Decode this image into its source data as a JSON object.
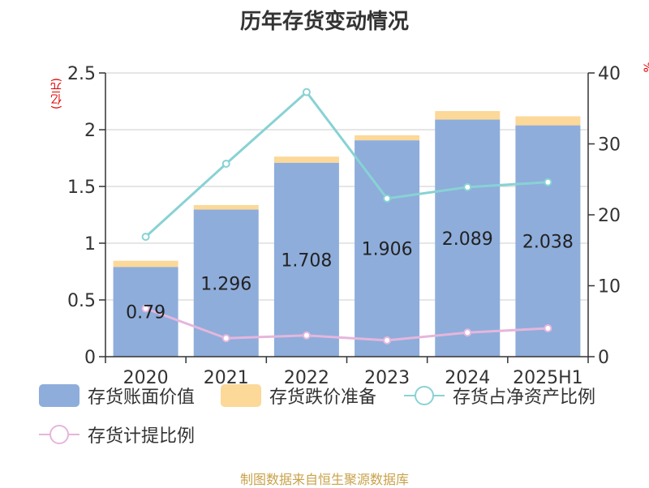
{
  "chart_data": {
    "type": "bar+line",
    "title": "历年存货变动情况",
    "categories": [
      "2020",
      "2021",
      "2022",
      "2023",
      "2024",
      "2025H1"
    ],
    "left_axis": {
      "unit": "(亿元)",
      "min": 0,
      "max": 2.5,
      "ticks": [
        "0",
        "0.5",
        "1",
        "1.5",
        "2",
        "2.5"
      ]
    },
    "right_axis": {
      "unit": "%",
      "min": 0,
      "max": 40,
      "ticks": [
        "0",
        "10",
        "20",
        "30",
        "40"
      ]
    },
    "bar_labels": [
      "0.79",
      "1.296",
      "1.708",
      "1.906",
      "2.089",
      "2.038"
    ],
    "series": [
      {
        "name": "存货账面价值",
        "kind": "bar",
        "axis": "left",
        "color": "#8eaddb",
        "values": [
          0.79,
          1.296,
          1.708,
          1.906,
          2.089,
          2.038
        ]
      },
      {
        "name": "存货跌价准备",
        "kind": "bar-stack",
        "axis": "left",
        "color": "#fcd899",
        "values": [
          0.055,
          0.04,
          0.055,
          0.045,
          0.075,
          0.08
        ]
      },
      {
        "name": "存货占净资产比例",
        "kind": "line",
        "axis": "right",
        "color": "#88d2d4",
        "values": [
          16.9,
          27.2,
          37.3,
          22.3,
          23.9,
          24.6
        ]
      },
      {
        "name": "存货计提比例",
        "kind": "line",
        "axis": "right",
        "color": "#e5b6dc",
        "values": [
          6.8,
          2.6,
          3.0,
          2.3,
          3.4,
          4.0
        ]
      }
    ],
    "grid": true
  },
  "source": "制图数据来自恒生聚源数据库"
}
